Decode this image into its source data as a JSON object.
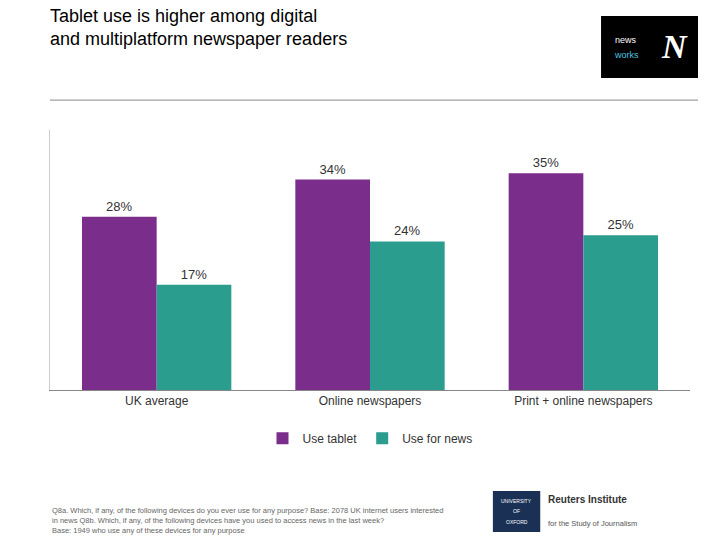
{
  "chart_data": {
    "type": "bar",
    "title": "Tablet use is higher among digital\nand multiplatform newspaper readers",
    "categories": [
      "UK average",
      "Online newspapers",
      "Print + online newspapers"
    ],
    "series": [
      {
        "name": "Use tablet",
        "color": "#7B2D8B",
        "values": [
          28,
          34,
          35
        ],
        "value_labels": [
          "28%",
          "34%",
          "35%"
        ]
      },
      {
        "name": "Use for news",
        "color": "#2A9D8F",
        "values": [
          17,
          24,
          25
        ],
        "value_labels": [
          "17%",
          "24%",
          "25%"
        ]
      }
    ],
    "ylim": [
      0,
      42
    ],
    "grid": false,
    "legend": "bottom",
    "data_labels": true,
    "tick_labels": "x",
    "annotations": [
      "Q8a. Which, if any, of the following devices do you ever use for any purpose? Base: 2078 UK internet users interested\nin news Q8b. Which, if any, of the following devices have you used to access news in the last week?\nBase: 1949 who use any of these devices for any purpose",
      "N",
      "news",
      "works",
      "UNIVERSITY",
      "OF",
      "OXFORD",
      "Reuters Institute",
      "for the Study of Journalism"
    ]
  }
}
